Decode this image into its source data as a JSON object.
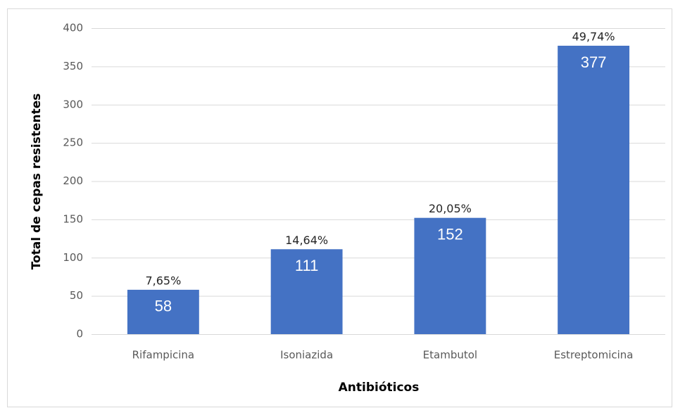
{
  "chart_data": {
    "type": "bar",
    "categories": [
      "Rifampicina",
      "Isoniazida",
      "Etambutol",
      "Estreptomicina"
    ],
    "values": [
      58,
      111,
      152,
      377
    ],
    "annotations": [
      "7,65%",
      "14,64%",
      "20,05%",
      "49,74%"
    ],
    "color": "#4472c4",
    "xlabel": "Antibióticos",
    "ylabel": "Total de cepas resistentes",
    "ylim": [
      0,
      400
    ],
    "yticks": [
      0,
      50,
      100,
      150,
      200,
      250,
      300,
      350,
      400
    ],
    "grid": true
  }
}
